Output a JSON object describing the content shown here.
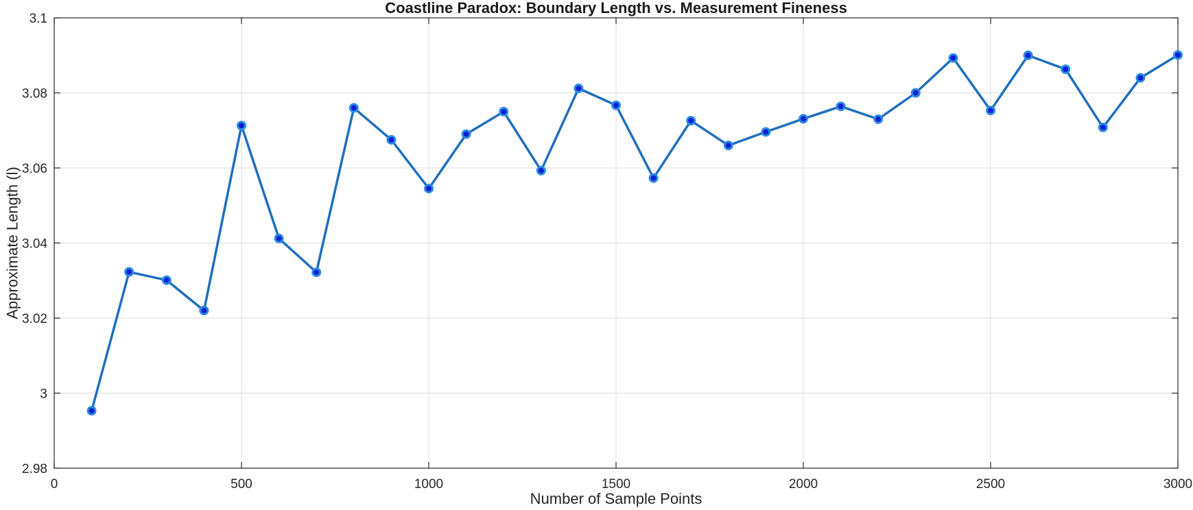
{
  "chart_data": {
    "type": "line",
    "title": "Coastline Paradox: Boundary Length vs. Measurement Fineness",
    "xlabel": "Number of Sample Points",
    "ylabel": "Approximate Length (l)",
    "xlim": [
      0,
      3000
    ],
    "ylim": [
      2.98,
      3.1
    ],
    "xticks": [
      0,
      500,
      1000,
      1500,
      2000,
      2500,
      3000
    ],
    "xtick_labels": [
      "0",
      "500",
      "1000",
      "1500",
      "2000",
      "2500",
      "3000"
    ],
    "yticks": [
      2.98,
      3.0,
      3.02,
      3.04,
      3.06,
      3.08,
      3.1
    ],
    "ytick_labels": [
      "2.98",
      "3",
      "3.02",
      "3.04",
      "3.06",
      "3.08",
      "3.1"
    ],
    "grid": true,
    "colors": {
      "line": "#1f6fbf",
      "marker_fill": "#0a1fd6",
      "marker_edge": "#2a8be0"
    },
    "series": [
      {
        "x": [
          100,
          200,
          300,
          400,
          500,
          600,
          700,
          800,
          900,
          1000,
          1100,
          1200,
          1300,
          1400,
          1500,
          1600,
          1700,
          1800,
          1900,
          2000,
          2100,
          2200,
          2300,
          2400,
          2500,
          2600,
          2700,
          2800,
          2900,
          3000
        ],
        "values": [
          2.9953,
          3.0323,
          3.0301,
          3.022,
          3.0713,
          3.0412,
          3.0322,
          3.076,
          3.0675,
          3.0545,
          3.069,
          3.075,
          3.0593,
          3.0812,
          3.0767,
          3.0573,
          3.0726,
          3.066,
          3.0696,
          3.0731,
          3.0764,
          3.073,
          3.08,
          3.0893,
          3.0753,
          3.09,
          3.0863,
          3.0708,
          3.084,
          3.0901
        ]
      }
    ]
  }
}
